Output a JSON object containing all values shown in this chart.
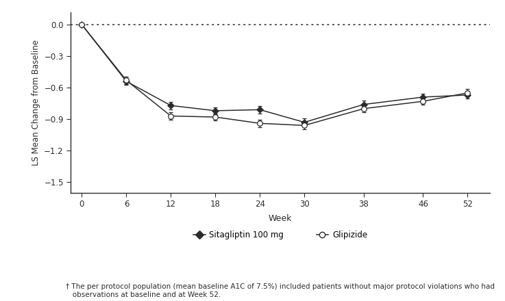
{
  "weeks": [
    0,
    6,
    12,
    18,
    24,
    30,
    38,
    46,
    52
  ],
  "sitagliptin": [
    0.0,
    -0.54,
    -0.77,
    -0.82,
    -0.81,
    -0.93,
    -0.76,
    -0.69,
    -0.67
  ],
  "glipizide": [
    0.0,
    -0.53,
    -0.87,
    -0.88,
    -0.94,
    -0.96,
    -0.8,
    -0.73,
    -0.65
  ],
  "sitagliptin_err": [
    0.0,
    0.035,
    0.035,
    0.035,
    0.035,
    0.035,
    0.035,
    0.035,
    0.035
  ],
  "glipizide_err": [
    0.0,
    0.035,
    0.035,
    0.035,
    0.035,
    0.035,
    0.035,
    0.035,
    0.035
  ],
  "xlabel": "Week",
  "ylabel": "LS Mean Change from Baseline",
  "ylim": [
    -1.6,
    0.12
  ],
  "yticks": [
    0.0,
    -0.3,
    -0.6,
    -0.9,
    -1.2,
    -1.5
  ],
  "xticks": [
    0,
    6,
    12,
    18,
    24,
    30,
    38,
    46,
    52
  ],
  "legend_sitagliptin": "Sitagliptin 100 mg",
  "legend_glipizide": "Glipizide",
  "footnote": "† The per protocol population (mean baseline A1C of 7.5%) included patients without major protocol violations who had\n   observations at baseline and at Week 52.",
  "line_color": "#2b2b2b",
  "background_color": "#ffffff"
}
